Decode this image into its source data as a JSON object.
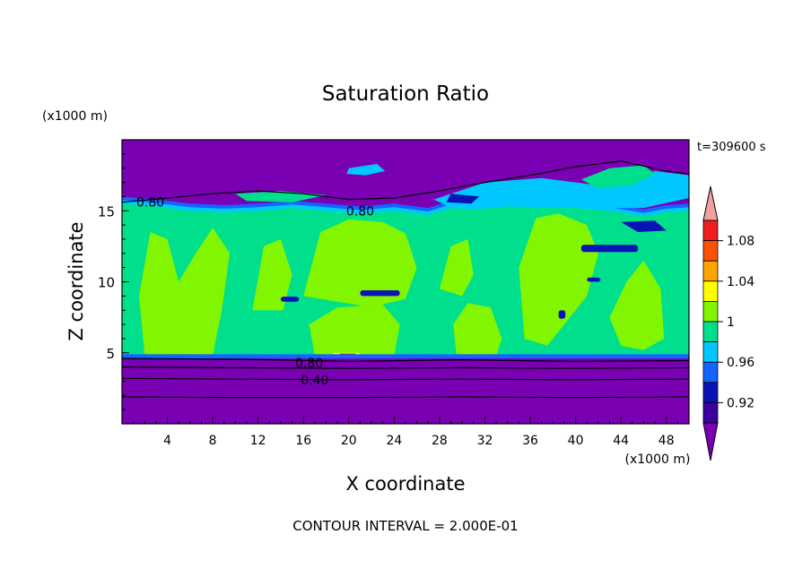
{
  "chart_data": {
    "type": "contour",
    "title": "Saturation Ratio",
    "xlabel": "X coordinate",
    "ylabel": "Z coordinate",
    "x_unit_label": "(x1000 m)",
    "y_unit_label": "(x1000 m)",
    "time_label": "t=309600 s",
    "footer": "CONTOUR INTERVAL = 2.000E-01",
    "x_range": [
      0,
      50
    ],
    "y_range": [
      0,
      20
    ],
    "x_ticks": [
      4,
      8,
      12,
      16,
      20,
      24,
      28,
      32,
      36,
      40,
      44,
      48
    ],
    "y_ticks": [
      5,
      10,
      15
    ],
    "colorbar": {
      "labels": [
        "1.08",
        "1.04",
        "1",
        "0.96",
        "0.92"
      ],
      "label_values": [
        1.08,
        1.04,
        1.0,
        0.96,
        0.92
      ],
      "levels": [
        0.9,
        0.92,
        0.94,
        0.96,
        0.98,
        1.0,
        1.02,
        1.04,
        1.06,
        1.08,
        1.1
      ],
      "colors": [
        "#7a00b4",
        "#3c00a0",
        "#0a14b4",
        "#1464ff",
        "#00c8ff",
        "#00e08c",
        "#82f500",
        "#ffff00",
        "#ffa500",
        "#ff5000",
        "#f01e1e",
        "#f5a0a0"
      ],
      "below_color": "#7a00b4",
      "above_color": "#f5a0a0"
    },
    "contour_labels": [
      {
        "text": "0.80",
        "x": 2.5,
        "z": 15.6
      },
      {
        "text": "0.80",
        "x": 21.0,
        "z": 15.0
      },
      {
        "text": "0.80",
        "x": 16.5,
        "z": 4.3
      },
      {
        "text": "0.40",
        "x": 17.0,
        "z": 3.1
      }
    ],
    "regions": {
      "lower_dry_top_z": 4.6,
      "moist_layer_top_z": 15.0,
      "upper_dry_base_z": 16.0
    }
  },
  "colors": {
    "dry": "#7a00b4",
    "moist": "#00e08c",
    "supersat": "#82f500",
    "cyan": "#00c8ff",
    "blue": "#1464ff",
    "navy": "#0a14b4",
    "yellow": "#ffff00",
    "red": "#f01e1e"
  }
}
